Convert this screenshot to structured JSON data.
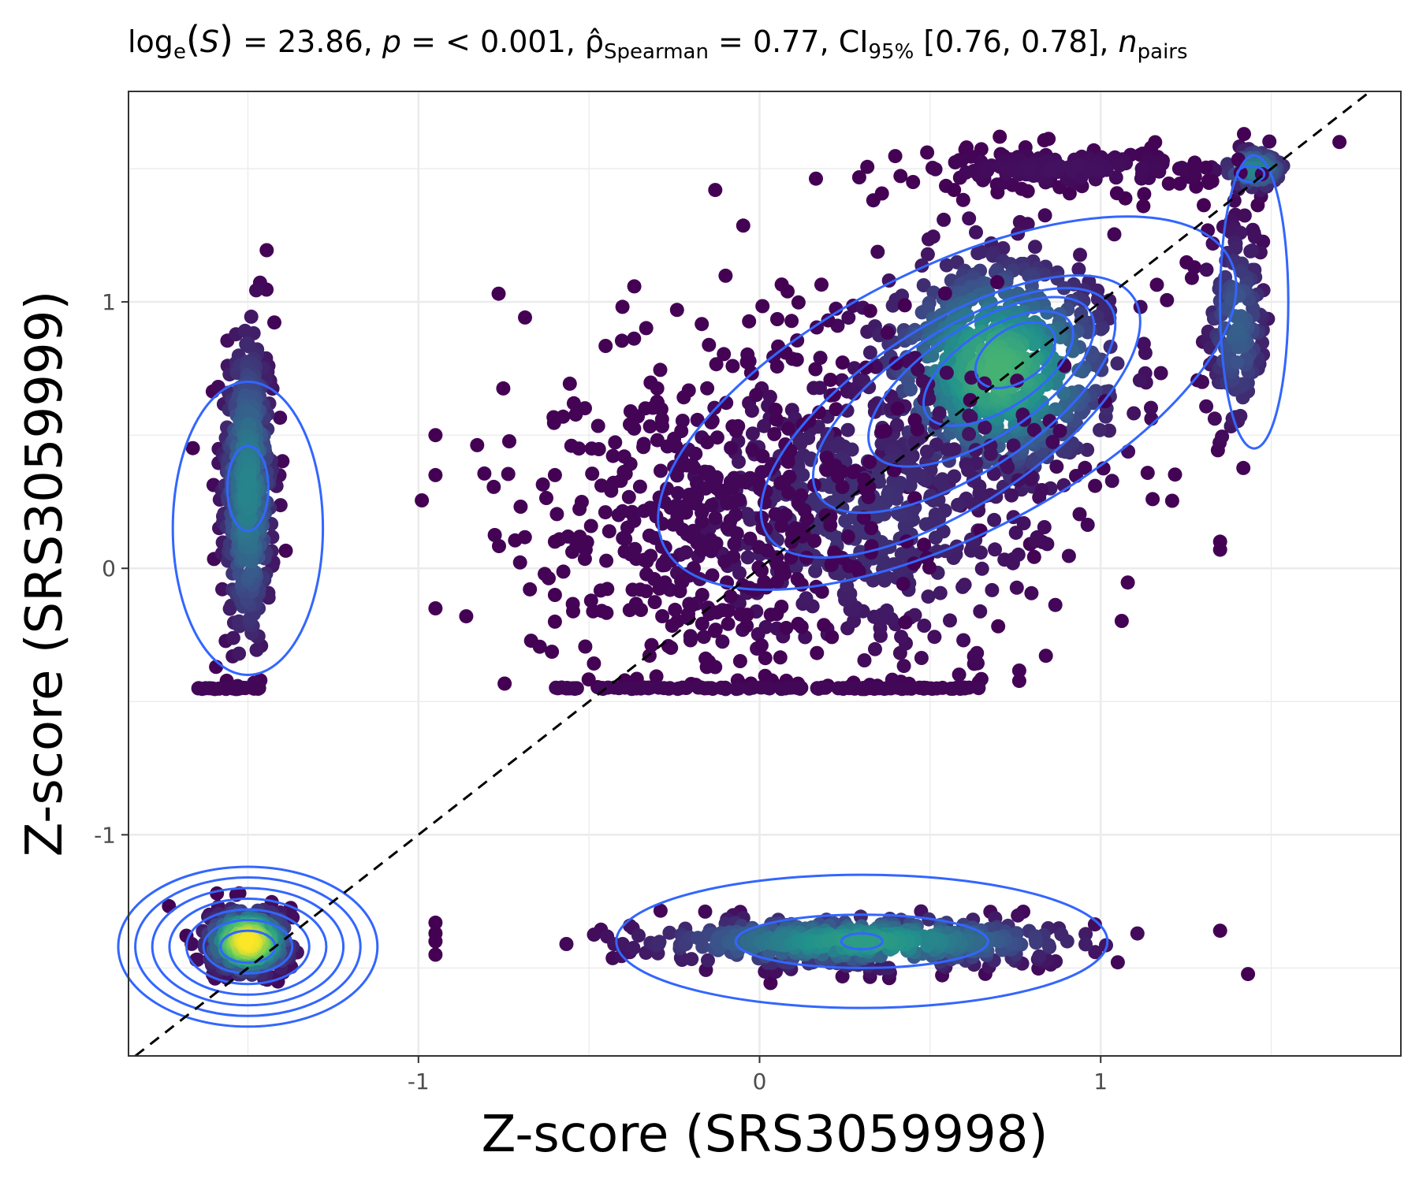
{
  "chart_data": {
    "type": "scatter",
    "title": {
      "pre": "log",
      "sub_e": "e",
      "s_open": "(",
      "s_letter": "S",
      "s_close": ")",
      "stat": " = 23.86, ",
      "p": "p",
      "p_val": " = < 0.001, ",
      "rho": "ρ̂",
      "rho_sub": "Spearman",
      "rho_val": " = 0.77, CI",
      "ci_sub": "95%",
      "ci_val": " [0.76, 0.78], ",
      "n": "n",
      "n_sub": "pairs"
    },
    "xlabel": "Z-score (SRS3059998)",
    "ylabel": "Z-score (SRS3059999)",
    "xlim": [
      -1.85,
      1.88
    ],
    "ylim": [
      -1.83,
      1.79
    ],
    "x_ticks": [
      -1,
      0,
      1
    ],
    "x_tick_labels": [
      "-1",
      "0",
      "1"
    ],
    "y_ticks": [
      -1,
      0,
      1
    ],
    "y_tick_labels": [
      "-1",
      "0",
      "1"
    ],
    "grid": true,
    "reference_line": {
      "style": "dashed",
      "slope": 1,
      "intercept": 0,
      "color": "#000000"
    },
    "point_colormap": [
      "#440154",
      "#3b528b",
      "#21918c",
      "#5ec962",
      "#fde725"
    ],
    "contour_color": "#3366ff",
    "clusters": [
      {
        "x_mean": -1.5,
        "y_mean": 0.3,
        "x_sd": 0.04,
        "y_sd": 0.32,
        "count": 420,
        "density": 0.45
      },
      {
        "x_mean": -1.5,
        "y_mean": -1.4,
        "x_sd": 0.06,
        "y_sd": 0.06,
        "count": 360,
        "density": 1.0
      },
      {
        "x_mean": 0.3,
        "y_mean": -1.4,
        "x_sd": 0.33,
        "y_sd": 0.05,
        "count": 460,
        "density": 0.55
      },
      {
        "x_mean": 0.7,
        "y_mean": 0.75,
        "x_sd": 0.18,
        "y_sd": 0.22,
        "count": 750,
        "density": 0.65
      },
      {
        "x_mean": 0.3,
        "y_mean": 0.2,
        "x_sd": 0.3,
        "y_sd": 0.3,
        "count": 520,
        "density": 0.15
      },
      {
        "x_mean": -0.15,
        "y_mean": 0.2,
        "x_sd": 0.3,
        "y_sd": 0.35,
        "count": 420,
        "density": 0.02
      },
      {
        "x_mean": 1.4,
        "y_mean": 0.9,
        "x_sd": 0.05,
        "y_sd": 0.2,
        "count": 160,
        "density": 0.3
      },
      {
        "x_mean": 1.45,
        "y_mean": 1.5,
        "x_sd": 0.05,
        "y_sd": 0.04,
        "count": 80,
        "density": 0.45
      },
      {
        "x_mean": 0.9,
        "y_mean": 1.5,
        "x_sd": 0.22,
        "y_sd": 0.04,
        "count": 160,
        "density": 0.05
      }
    ],
    "floor_rows": [
      {
        "y": -0.45,
        "x_from": -0.6,
        "x_to": 0.65,
        "count": 120
      },
      {
        "y": -0.45,
        "x_from": -1.65,
        "x_to": -1.45,
        "count": 30
      }
    ],
    "outliers": [
      [
        -0.13,
        1.42
      ],
      [
        -0.95,
        0.5
      ],
      [
        -0.95,
        0.35
      ],
      [
        -0.95,
        -0.15
      ],
      [
        -0.86,
        -0.18
      ],
      [
        -0.95,
        -1.33
      ],
      [
        -0.95,
        -1.37
      ],
      [
        -0.95,
        -1.4
      ],
      [
        -0.95,
        -1.45
      ],
      [
        1.35,
        -1.36
      ],
      [
        1.35,
        0.1
      ],
      [
        1.35,
        0.07
      ],
      [
        1.42,
        1.63
      ],
      [
        1.7,
        1.6
      ],
      [
        0.45,
        1.45
      ],
      [
        0.57,
        1.42
      ],
      [
        -0.6,
        0.35
      ],
      [
        -0.6,
        0.1
      ],
      [
        -0.6,
        -0.1
      ],
      [
        -0.6,
        -0.2
      ]
    ],
    "contours": [
      {
        "cx": -1.5,
        "cy": 0.3,
        "rx": 0.06,
        "ry": 0.16
      },
      {
        "cx": -1.5,
        "cy": 0.15,
        "rx": 0.22,
        "ry": 0.55
      },
      {
        "cx": -1.5,
        "cy": -1.42,
        "rx": 0.08,
        "ry": 0.06
      },
      {
        "cx": -1.5,
        "cy": -1.42,
        "rx": 0.13,
        "ry": 0.1
      },
      {
        "cx": -1.5,
        "cy": -1.42,
        "rx": 0.18,
        "ry": 0.14
      },
      {
        "cx": -1.5,
        "cy": -1.42,
        "rx": 0.23,
        "ry": 0.18
      },
      {
        "cx": -1.5,
        "cy": -1.42,
        "rx": 0.28,
        "ry": 0.22
      },
      {
        "cx": -1.5,
        "cy": -1.42,
        "rx": 0.33,
        "ry": 0.26
      },
      {
        "cx": -1.5,
        "cy": -1.42,
        "rx": 0.38,
        "ry": 0.3
      },
      {
        "cx": 0.3,
        "cy": -1.4,
        "rx": 0.06,
        "ry": 0.03
      },
      {
        "cx": 0.3,
        "cy": -1.4,
        "rx": 0.37,
        "ry": 0.1
      },
      {
        "cx": 0.3,
        "cy": -1.4,
        "rx": 0.72,
        "ry": 0.25
      },
      {
        "cx": 0.75,
        "cy": 0.8,
        "rx": 0.13,
        "ry": 0.1,
        "angle": 33
      },
      {
        "cx": 0.7,
        "cy": 0.75,
        "rx": 0.25,
        "ry": 0.15,
        "angle": 33
      },
      {
        "cx": 0.65,
        "cy": 0.7,
        "rx": 0.38,
        "ry": 0.21,
        "angle": 33
      },
      {
        "cx": 0.6,
        "cy": 0.63,
        "rx": 0.51,
        "ry": 0.27,
        "angle": 33
      },
      {
        "cx": 0.56,
        "cy": 0.57,
        "rx": 0.64,
        "ry": 0.34,
        "angle": 33
      },
      {
        "cx": 0.55,
        "cy": 0.62,
        "rx": 0.93,
        "ry": 0.5,
        "angle": 27
      },
      {
        "cx": 1.44,
        "cy": 1.48,
        "rx": 0.04,
        "ry": 0.03
      },
      {
        "cx": 1.45,
        "cy": 1.0,
        "rx": 0.1,
        "ry": 0.55
      }
    ]
  }
}
